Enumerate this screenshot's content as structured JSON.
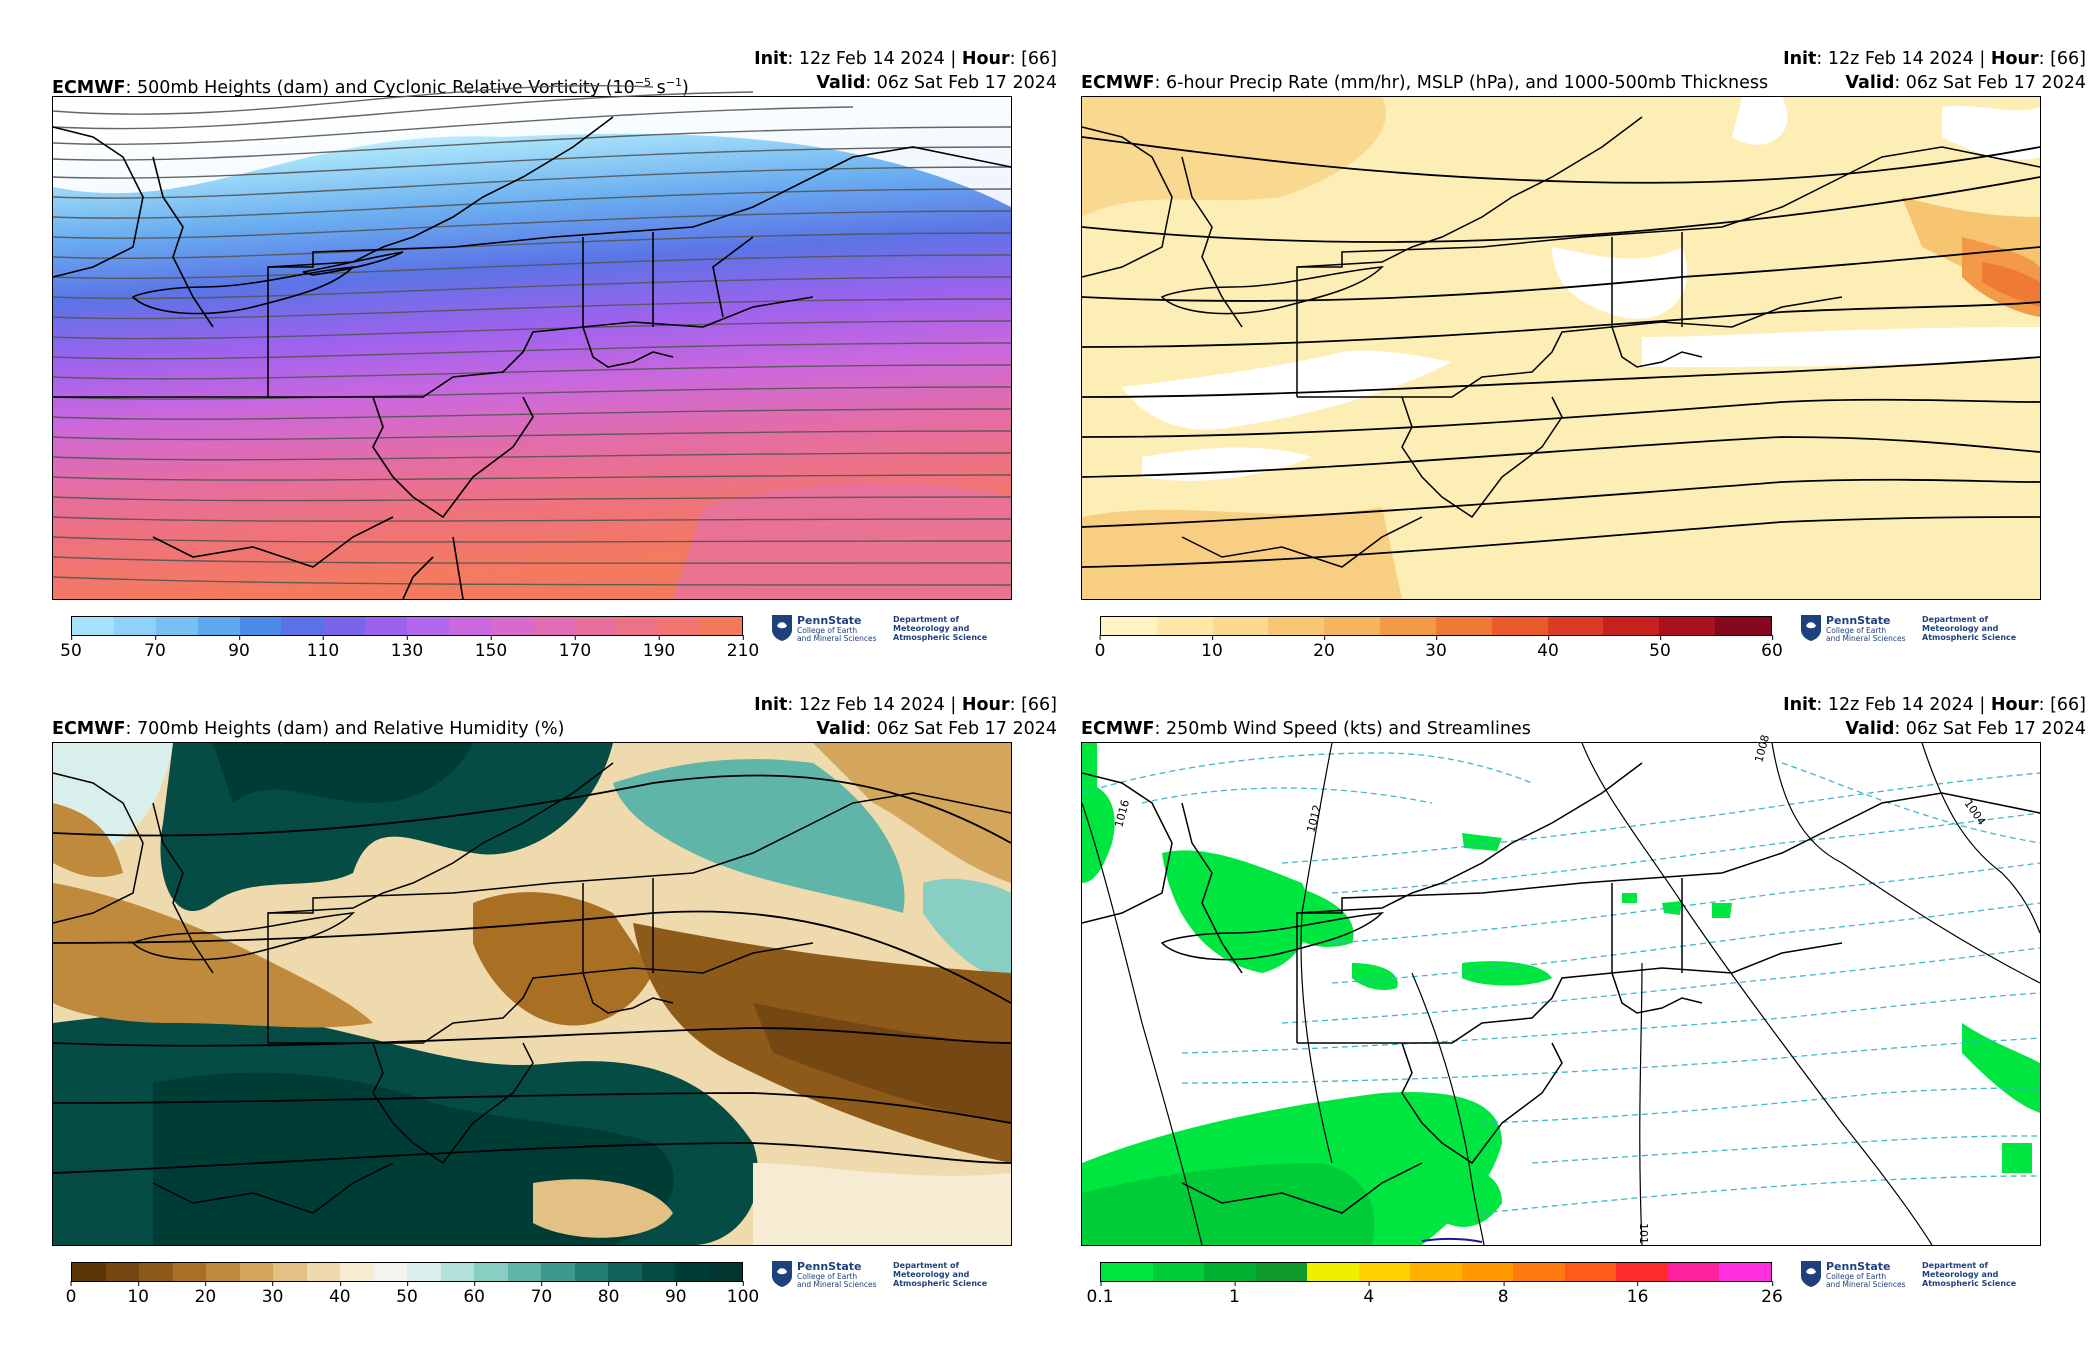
{
  "panels": [
    {
      "model": "ECMWF",
      "title_rest": ": 500mb Heights (dam) and Cyclonic Relative Vorticity (10",
      "title_sup": "−5",
      "title_tail": " s",
      "title_sup2": "−1",
      "title_close": ")",
      "init_label": "Init",
      "init_value": ": 12z Feb 14 2024 | ",
      "hour_label": "Hour",
      "hour_value": ": [66]",
      "valid_label": "Valid",
      "valid_value": ": 06z Sat Feb 17 2024",
      "colorbar": {
        "ticks": [
          "50",
          "70",
          "90",
          "110",
          "130",
          "150",
          "170",
          "190",
          "210"
        ],
        "colors": [
          "#a6e1fa",
          "#90d2f7",
          "#78bff3",
          "#5ea8ef",
          "#4b8ce8",
          "#5a72e6",
          "#7a64ea",
          "#9b62ef",
          "#b467ec",
          "#c968df",
          "#d86acb",
          "#e06db3",
          "#e66f9e",
          "#ec7288",
          "#f07573",
          "#f47a5e"
        ]
      }
    },
    {
      "model": "ECMWF",
      "title_rest": ": 6-hour Precip Rate (mm/hr), MSLP (hPa), and 1000-500mb Thickness",
      "init_label": "Init",
      "init_value": ": 12z Feb 14 2024 | ",
      "hour_label": "Hour",
      "hour_value": ": [66]",
      "valid_label": "Valid",
      "valid_value": ": 06z Sat Feb 17 2024",
      "colorbar": {
        "ticks": [
          "0",
          "10",
          "20",
          "30",
          "40",
          "50",
          "60"
        ],
        "colors": [
          "#fff3bf",
          "#fde8a8",
          "#fbd98e",
          "#f8c774",
          "#f5b45e",
          "#f29a48",
          "#ee7a36",
          "#e85a2a",
          "#dc3a24",
          "#c8201f",
          "#aa101e",
          "#86081f"
        ]
      }
    },
    {
      "model": "ECMWF",
      "title_rest": ": 700mb Heights (dam) and Relative Humidity (%)",
      "init_label": "Init",
      "init_value": ": 12z Feb 14 2024 | ",
      "hour_label": "Hour",
      "hour_value": ": [66]",
      "valid_label": "Valid",
      "valid_value": ": 06z Sat Feb 17 2024",
      "colorbar": {
        "ticks": [
          "0",
          "10",
          "20",
          "30",
          "40",
          "50",
          "60",
          "70",
          "80",
          "90",
          "100"
        ],
        "colors": [
          "#5a3606",
          "#754712",
          "#8e5a1a",
          "#a96f22",
          "#c08a3c",
          "#d4a65c",
          "#e3c184",
          "#eedaac",
          "#f6ecd4",
          "#f3f3ef",
          "#d9efec",
          "#b3e2da",
          "#88cec3",
          "#5fb5a8",
          "#3e998d",
          "#237d72",
          "#10625a",
          "#054c45",
          "#003c36",
          "#003530"
        ]
      }
    },
    {
      "model": "ECMWF",
      "title_rest": ": 250mb Wind Speed (kts) and Streamlines",
      "init_label": "Init",
      "init_value": ": 12z Feb 14 2024 | ",
      "hour_label": "Hour",
      "hour_value": ": [66]",
      "valid_label": "Valid",
      "valid_value": ": 06z Sat Feb 17 2024",
      "colorbar": {
        "ticks": [
          "0.1",
          "1",
          "4",
          "8",
          "16",
          "26"
        ],
        "colors": [
          "#00e640",
          "#00cc38",
          "#00b030",
          "#109a2a",
          "#eef000",
          "#ffd100",
          "#ffb300",
          "#ff9700",
          "#ff7a10",
          "#ff5a1a",
          "#ff2a2a",
          "#ff20a0",
          "#ff30e0"
        ]
      },
      "contour_labels": [
        "1008",
        "1012",
        "1004",
        "1016",
        "101"
      ]
    }
  ],
  "logo": {
    "name": "PennState",
    "college_line1": "College of Earth",
    "college_line2": "and Mineral Sciences",
    "dept_line1": "Department of",
    "dept_line2": "Meteorology and",
    "dept_line3": "Atmospheric Science"
  }
}
